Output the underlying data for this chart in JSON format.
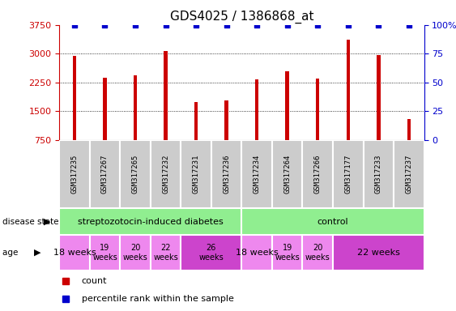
{
  "title": "GDS4025 / 1386868_at",
  "samples": [
    "GSM317235",
    "GSM317267",
    "GSM317265",
    "GSM317232",
    "GSM317231",
    "GSM317236",
    "GSM317234",
    "GSM317264",
    "GSM317266",
    "GSM317177",
    "GSM317233",
    "GSM317237"
  ],
  "counts": [
    2950,
    2380,
    2430,
    3070,
    1730,
    1780,
    2320,
    2530,
    2340,
    3360,
    2960,
    1300
  ],
  "percentiles": [
    100,
    100,
    100,
    100,
    100,
    100,
    100,
    100,
    100,
    100,
    100,
    100
  ],
  "bar_color": "#cc0000",
  "dot_color": "#0000cc",
  "ylim_left": [
    750,
    3750
  ],
  "ylim_right": [
    0,
    100
  ],
  "yticks_left": [
    750,
    1500,
    2250,
    3000,
    3750
  ],
  "yticks_right": [
    0,
    25,
    50,
    75,
    100
  ],
  "disease_state_groups": [
    {
      "label": "streptozotocin-induced diabetes",
      "start": 0,
      "end": 6,
      "color": "#90ee90"
    },
    {
      "label": "control",
      "start": 6,
      "end": 12,
      "color": "#90ee90"
    }
  ],
  "age_groups": [
    {
      "label": "18 weeks",
      "start": 0,
      "end": 1,
      "color": "#ee88ee",
      "fontsize": 8
    },
    {
      "label": "19\nweeks",
      "start": 1,
      "end": 2,
      "color": "#ee88ee",
      "fontsize": 7
    },
    {
      "label": "20\nweeks",
      "start": 2,
      "end": 3,
      "color": "#ee88ee",
      "fontsize": 7
    },
    {
      "label": "22\nweeks",
      "start": 3,
      "end": 4,
      "color": "#ee88ee",
      "fontsize": 7
    },
    {
      "label": "26\nweeks",
      "start": 4,
      "end": 6,
      "color": "#cc44cc",
      "fontsize": 7
    },
    {
      "label": "18 weeks",
      "start": 6,
      "end": 7,
      "color": "#ee88ee",
      "fontsize": 8
    },
    {
      "label": "19\nweeks",
      "start": 7,
      "end": 8,
      "color": "#ee88ee",
      "fontsize": 7
    },
    {
      "label": "20\nweeks",
      "start": 8,
      "end": 9,
      "color": "#ee88ee",
      "fontsize": 7
    },
    {
      "label": "22 weeks",
      "start": 9,
      "end": 12,
      "color": "#cc44cc",
      "fontsize": 8
    }
  ],
  "sample_box_color": "#cccccc",
  "legend_count_color": "#cc0000",
  "legend_dot_color": "#0000cc",
  "left_yaxis_color": "#cc0000",
  "right_yaxis_color": "#0000cc",
  "grid_color": "#000000"
}
